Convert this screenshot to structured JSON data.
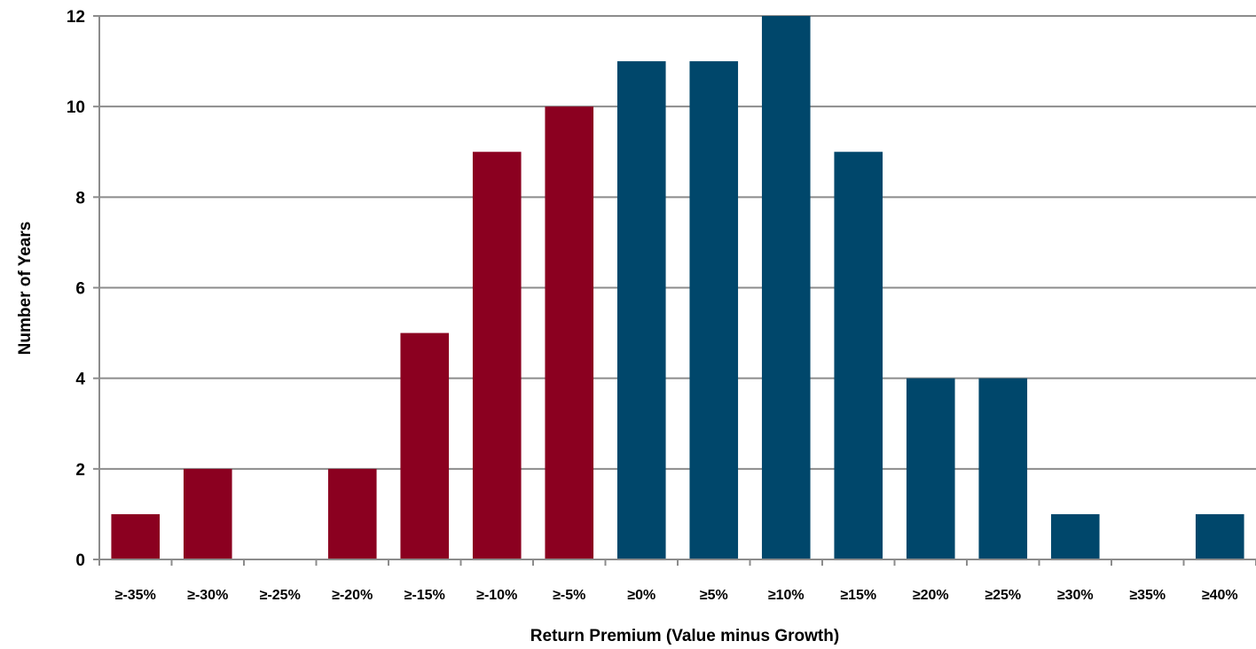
{
  "chart_data": {
    "type": "bar",
    "title": "",
    "xlabel": "Return Premium (Value minus Growth)",
    "ylabel": "Number of Years",
    "categories": [
      "≥-35%",
      "≥-30%",
      "≥-25%",
      "≥-20%",
      "≥-15%",
      "≥-10%",
      "≥-5%",
      "≥0%",
      "≥5%",
      "≥10%",
      "≥15%",
      "≥20%",
      "≥25%",
      "≥30%",
      "≥35%",
      "≥40%"
    ],
    "values": [
      1,
      2,
      0,
      2,
      5,
      9,
      10,
      11,
      11,
      12,
      9,
      4,
      4,
      1,
      0,
      1
    ],
    "ylim": [
      0,
      12
    ],
    "yticks": [
      0,
      2,
      4,
      6,
      8,
      10,
      12
    ],
    "grid": true,
    "legend": "none",
    "colors": {
      "negative": "#8b0020",
      "positive": "#00476b",
      "grid": "#8c8c8c",
      "axis": "#8c8c8c"
    }
  }
}
